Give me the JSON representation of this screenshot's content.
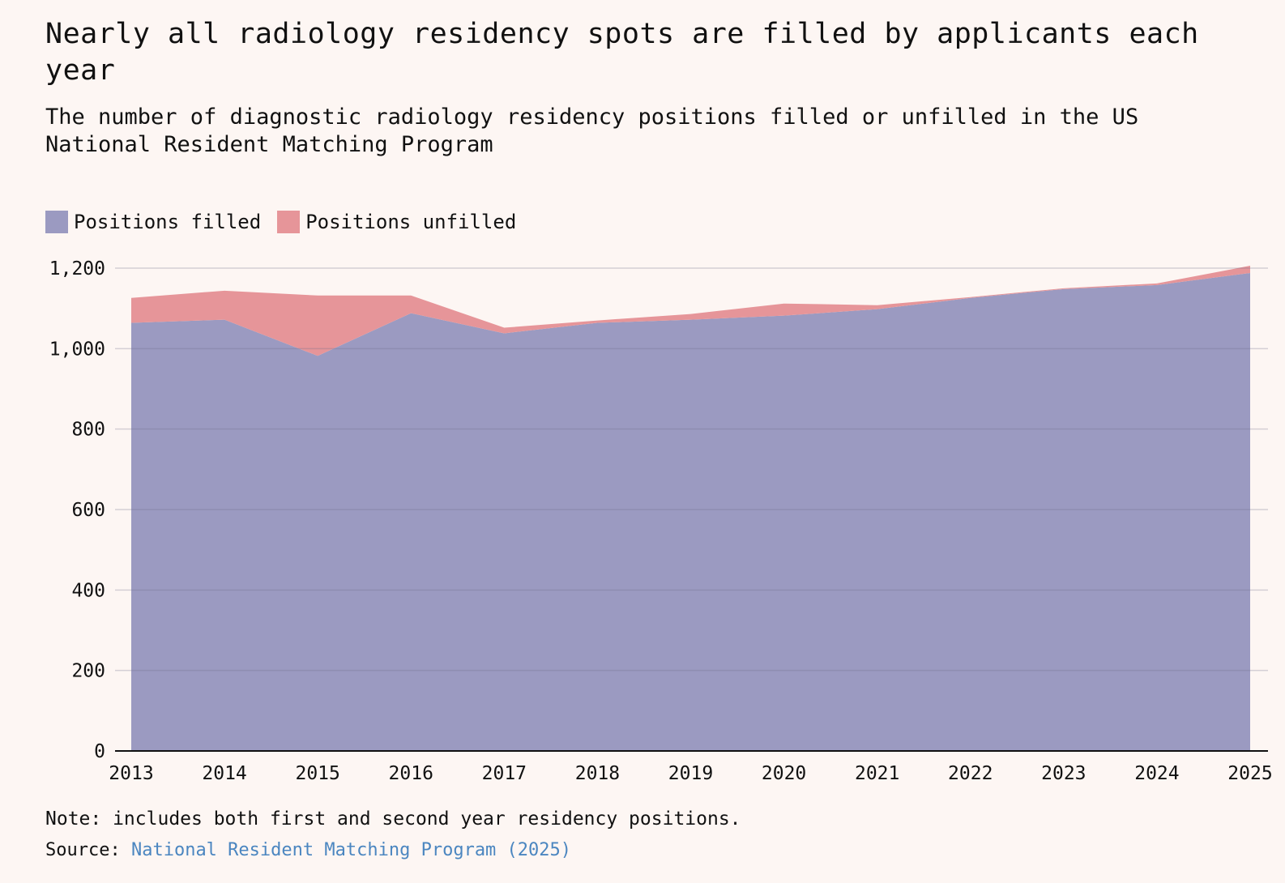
{
  "title": "Nearly all radiology residency spots are filled by applicants each year",
  "subtitle": "The number of diagnostic radiology residency positions filled or unfilled in the US National Resident Matching Program",
  "legend": [
    {
      "label": "Positions filled",
      "color": "#9b9ac1"
    },
    {
      "label": "Positions unfilled",
      "color": "#e69599"
    }
  ],
  "note": "Note: includes both first and second year residency positions.",
  "source": {
    "prefix": "Source:",
    "link_text": "National Resident Matching Program (2025)"
  },
  "chart_data": {
    "type": "area",
    "stacked": true,
    "x": [
      2013,
      2014,
      2015,
      2016,
      2017,
      2018,
      2019,
      2020,
      2021,
      2022,
      2023,
      2024,
      2025
    ],
    "series": [
      {
        "name": "Positions filled",
        "color": "#9b9ac1",
        "values": [
          1064,
          1072,
          982,
          1088,
          1038,
          1064,
          1072,
          1082,
          1098,
          1126,
          1148,
          1158,
          1188
        ]
      },
      {
        "name": "Positions unfilled",
        "color": "#e69599",
        "values": [
          62,
          72,
          150,
          44,
          14,
          6,
          14,
          30,
          10,
          2,
          2,
          4,
          18
        ]
      }
    ],
    "ylim": [
      0,
      1200
    ],
    "yticks": [
      0,
      200,
      400,
      600,
      800,
      1000,
      1200
    ],
    "ytick_labels": [
      "0",
      "200",
      "400",
      "600",
      "800",
      "1,000",
      "1,200"
    ],
    "xtick_labels": [
      "2013",
      "2014",
      "2015",
      "2016",
      "2017",
      "2018",
      "2019",
      "2020",
      "2021",
      "2022",
      "2023",
      "2024",
      "2025"
    ],
    "grid": true,
    "legend_position": "top-left"
  }
}
